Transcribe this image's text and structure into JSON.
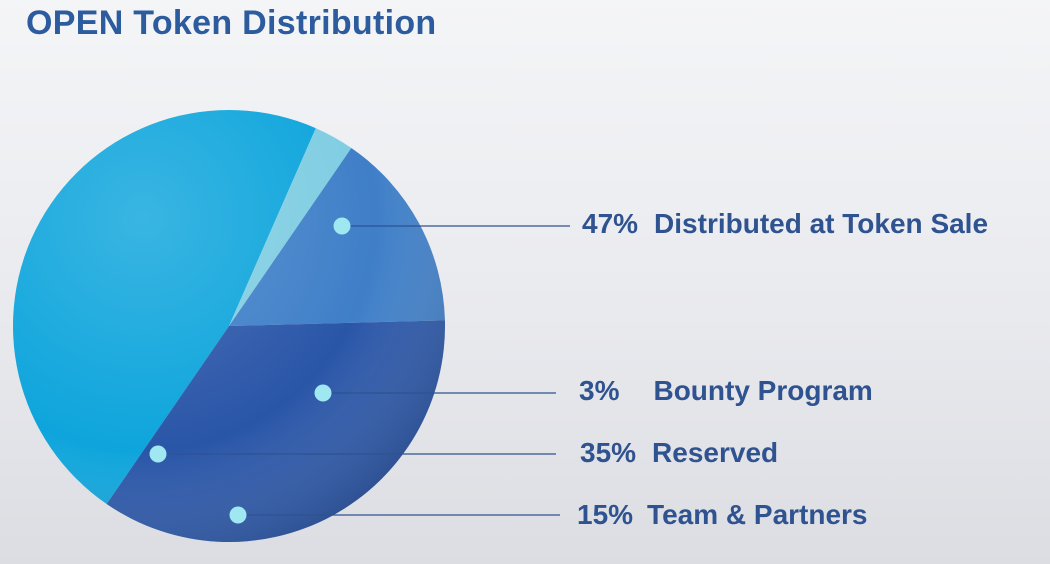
{
  "title": "OPEN Token Distribution",
  "chart_data": {
    "type": "pie",
    "title": "OPEN Token Distribution",
    "slices": [
      {
        "label": "Distributed at Token Sale",
        "percent_label": "47%",
        "value": 47,
        "color": "#0ea5dc"
      },
      {
        "label": "Bounty Program",
        "percent_label": "3%",
        "value": 3,
        "color": "#7fcde2"
      },
      {
        "label": "Team & Partners",
        "percent_label": "15%",
        "value": 15,
        "color": "#3f7fc8"
      },
      {
        "label": "Reserved",
        "percent_label": "35%",
        "value": 35,
        "color": "#2a56a8"
      }
    ],
    "legend_placement": "right",
    "colors": {
      "text": "#2f5290",
      "title": "#2c5b9e",
      "leader_line": "#2f5290",
      "marker": "#9fe8f2"
    }
  }
}
